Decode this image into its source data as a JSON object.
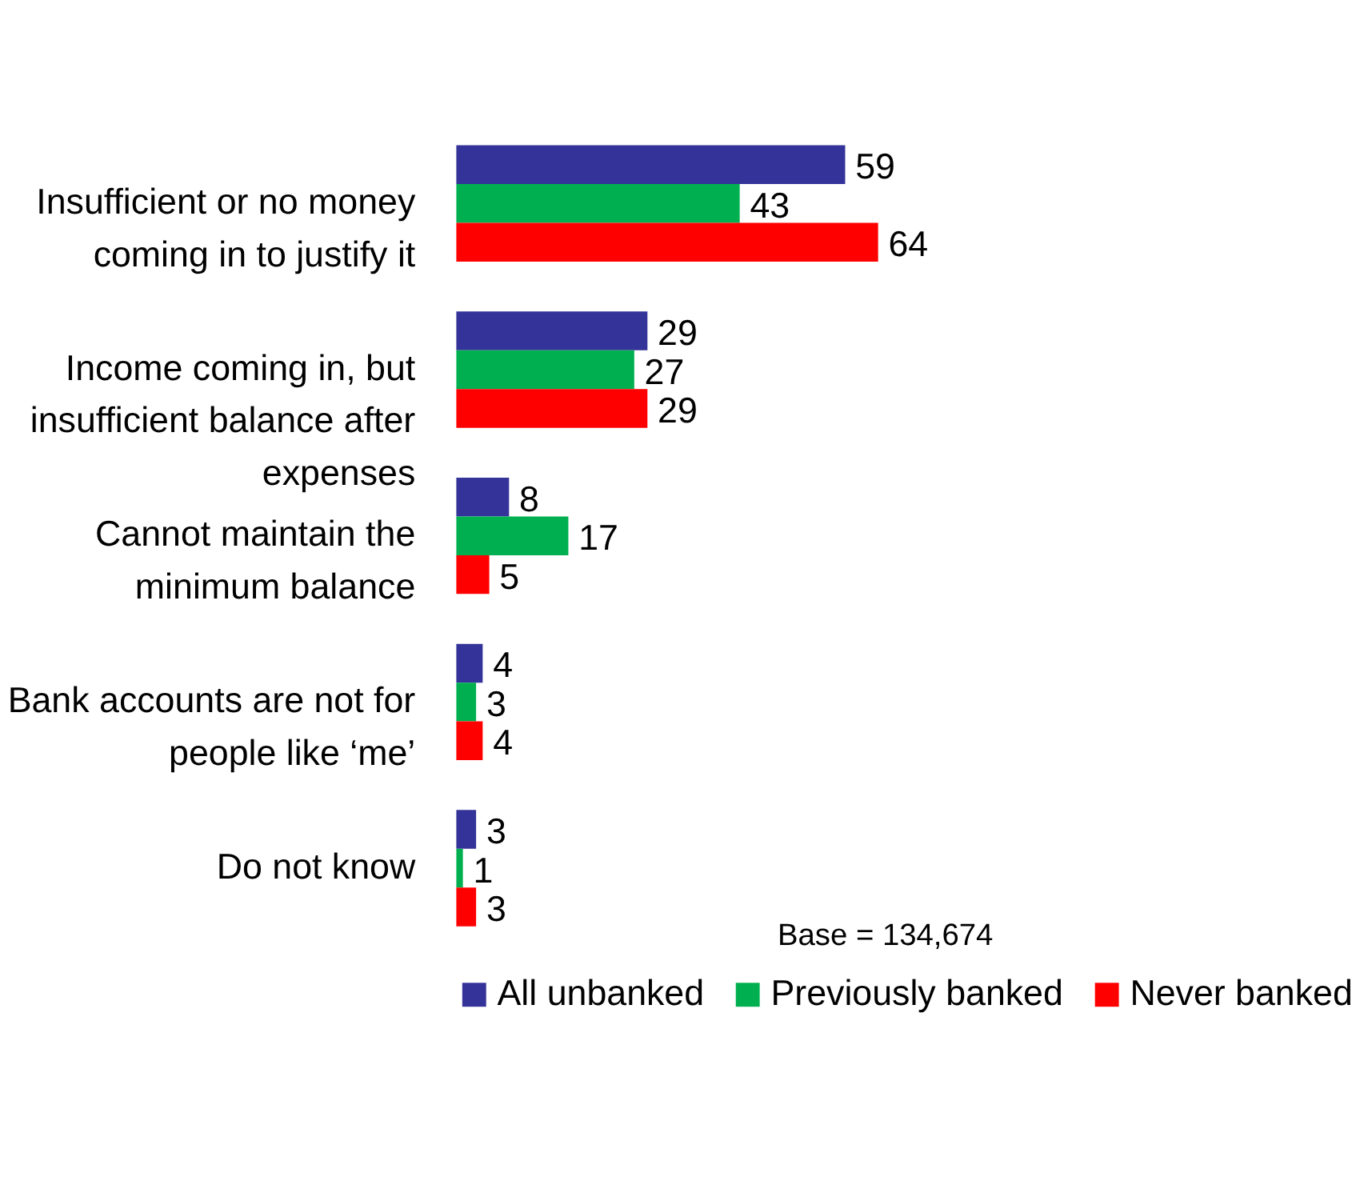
{
  "chart_data": {
    "type": "bar",
    "orientation": "horizontal",
    "categories": [
      "Insufficient or no money coming in to justify it",
      "Income coming in, but insufficient balance after expenses",
      "Cannot maintain the minimum balance",
      "Bank accounts are not for people like ‘me’",
      "Do not know"
    ],
    "series": [
      {
        "name": "All unbanked",
        "color": "#333399",
        "values": [
          59,
          29,
          8,
          4,
          3
        ]
      },
      {
        "name": "Previously banked",
        "color": "#00b050",
        "values": [
          43,
          27,
          17,
          3,
          1
        ]
      },
      {
        "name": "Never banked",
        "color": "#ff0000",
        "values": [
          64,
          29,
          5,
          4,
          3
        ]
      }
    ],
    "data_labels": true,
    "legend": "bottom",
    "annotations": [
      "Base = 134,674"
    ]
  }
}
